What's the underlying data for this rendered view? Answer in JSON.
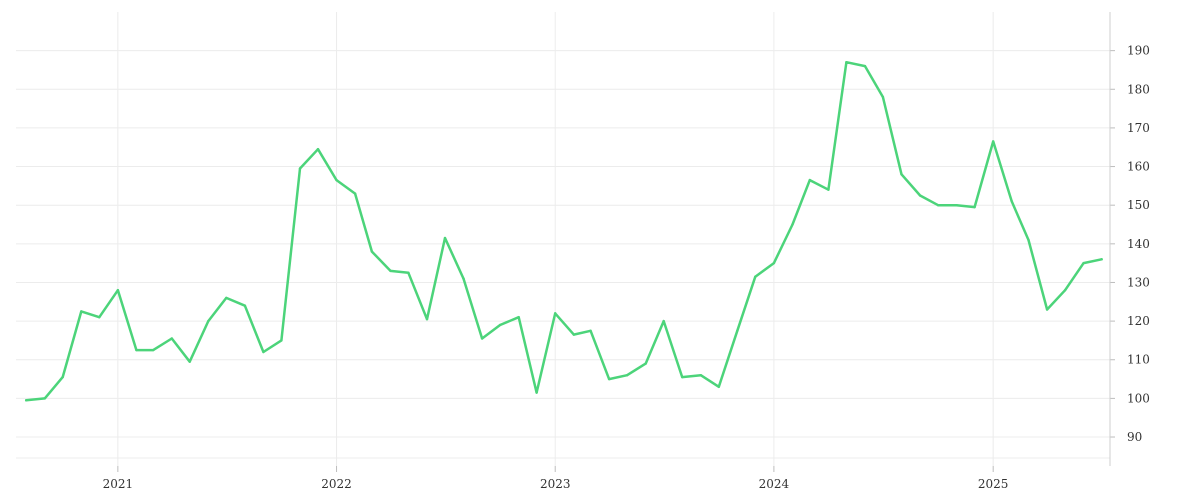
{
  "chart_data": {
    "type": "line",
    "title": "",
    "xlabel": "",
    "ylabel": "",
    "x_axis": {
      "type": "date",
      "range": [
        "2020-07-15",
        "2025-07-15"
      ],
      "ticks": [
        {
          "date": "2021-01-01",
          "label": "2021"
        },
        {
          "date": "2022-01-01",
          "label": "2022"
        },
        {
          "date": "2023-01-01",
          "label": "2023"
        },
        {
          "date": "2024-01-01",
          "label": "2024"
        },
        {
          "date": "2025-01-01",
          "label": "2025"
        }
      ]
    },
    "y_axis": {
      "position": "right",
      "range": [
        82.5,
        200
      ],
      "ticks": [
        90,
        100,
        110,
        120,
        130,
        140,
        150,
        160,
        170,
        180,
        190
      ]
    },
    "grid": true,
    "legend": "none",
    "colors": {
      "series": "#4cd47a",
      "grid": "#ececec",
      "text": "#333333"
    },
    "series": [
      {
        "x": [
          "2020-08-01",
          "2020-09-01",
          "2020-10-01",
          "2020-11-01",
          "2020-12-01",
          "2021-01-01",
          "2021-02-01",
          "2021-03-01",
          "2021-04-01",
          "2021-05-01",
          "2021-06-01",
          "2021-07-01",
          "2021-08-01",
          "2021-09-01",
          "2021-10-01",
          "2021-11-01",
          "2021-12-01",
          "2022-01-01",
          "2022-02-01",
          "2022-03-01",
          "2022-04-01",
          "2022-05-01",
          "2022-06-01",
          "2022-07-01",
          "2022-08-01",
          "2022-09-01",
          "2022-10-01",
          "2022-11-01",
          "2022-12-01",
          "2023-01-01",
          "2023-02-01",
          "2023-03-01",
          "2023-04-01",
          "2023-05-01",
          "2023-06-01",
          "2023-07-01",
          "2023-08-01",
          "2023-09-01",
          "2023-10-01",
          "2023-11-01",
          "2023-12-01",
          "2024-01-01",
          "2024-02-01",
          "2024-03-01",
          "2024-04-01",
          "2024-05-01",
          "2024-06-01",
          "2024-07-01",
          "2024-08-01",
          "2024-09-01",
          "2024-10-01",
          "2024-11-01",
          "2024-12-01",
          "2025-01-01",
          "2025-02-01",
          "2025-03-01",
          "2025-04-01",
          "2025-05-01",
          "2025-06-01",
          "2025-07-01"
        ],
        "y": [
          99.5,
          100,
          105.5,
          122.5,
          121,
          128,
          112.5,
          112.5,
          115.5,
          109.5,
          120,
          126,
          124,
          112,
          115,
          159.5,
          164.5,
          156.5,
          153,
          138,
          133,
          132.5,
          120.5,
          141.5,
          131,
          115.5,
          119,
          121,
          101.5,
          122,
          116.5,
          117.5,
          105,
          106,
          109,
          120,
          105.5,
          106,
          103,
          117.5,
          131.5,
          135,
          145,
          156.5,
          154,
          187,
          186,
          178,
          158,
          152.5,
          150,
          150,
          149.5,
          166.5,
          151,
          141,
          123,
          128,
          135,
          136
        ]
      }
    ]
  }
}
